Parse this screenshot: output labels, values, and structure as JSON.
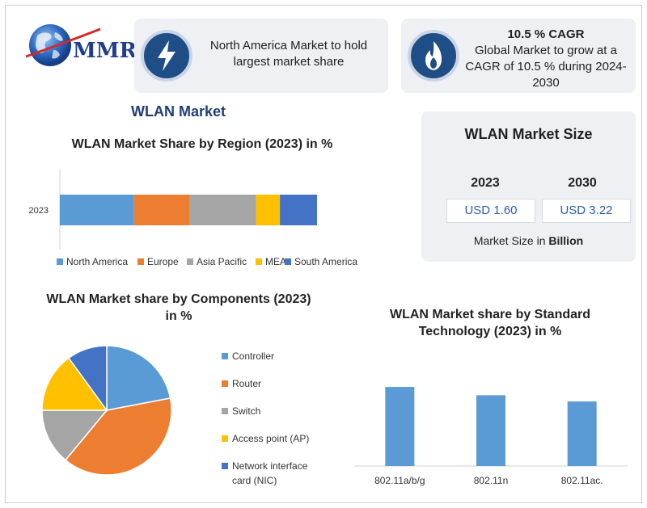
{
  "brand": {
    "logo_text": "MMR"
  },
  "cards": {
    "region_text": "North America Market to hold largest market share",
    "cagr_title": "10.5 % CAGR",
    "cagr_text": "Global Market to grow at a CAGR of 10.5 % during 2024-2030"
  },
  "market_title": "WLAN Market",
  "market_size": {
    "title": "WLAN Market Size",
    "years": [
      "2023",
      "2030"
    ],
    "values": [
      "USD 1.60",
      "USD 3.22"
    ],
    "footer_prefix": "Market Size in",
    "footer_unit": "Billion"
  },
  "colors": {
    "blue": "#5b9bd5",
    "orange": "#ed7d31",
    "gray": "#a5a5a5",
    "yellow": "#ffc000",
    "darkblue": "#4472c4",
    "icon_bg": "#1f4d86",
    "card_bg": "#eef0f4"
  },
  "icons": [
    "globe-icon",
    "lightning-icon",
    "flame-icon"
  ],
  "chart_data": [
    {
      "type": "bar",
      "orientation": "horizontal-stacked",
      "title": "WLAN Market Share by Region (2023) in %",
      "categories": [
        "2023"
      ],
      "series": [
        {
          "name": "North America",
          "values": [
            28
          ],
          "color": "#5b9bd5"
        },
        {
          "name": "Europe",
          "values": [
            21
          ],
          "color": "#ed7d31"
        },
        {
          "name": "Asia Pacific",
          "values": [
            25
          ],
          "color": "#a5a5a5"
        },
        {
          "name": "MEA",
          "values": [
            9
          ],
          "color": "#ffc000"
        },
        {
          "name": "South America",
          "values": [
            14
          ],
          "color": "#4472c4"
        }
      ],
      "legend": "bottom",
      "grid": false
    },
    {
      "type": "pie",
      "title": "WLAN Market share by Components (2023) in %",
      "labels": [
        "Controller",
        "Router",
        "Switch",
        "Access point (AP)",
        "Network interface card (NIC)"
      ],
      "values": [
        22,
        39,
        14,
        15,
        10
      ],
      "colors": [
        "#5b9bd5",
        "#ed7d31",
        "#a5a5a5",
        "#ffc000",
        "#4472c4"
      ],
      "legend": "right"
    },
    {
      "type": "bar",
      "title": "WLAN Market share by Standard Technology (2023) in %",
      "categories": [
        "802.11a/b/g",
        "802.11n",
        "802.11ac."
      ],
      "values": [
        38,
        34,
        31
      ],
      "ylim": [
        0,
        45
      ],
      "color": "#5b9bd5",
      "grid": false
    }
  ]
}
